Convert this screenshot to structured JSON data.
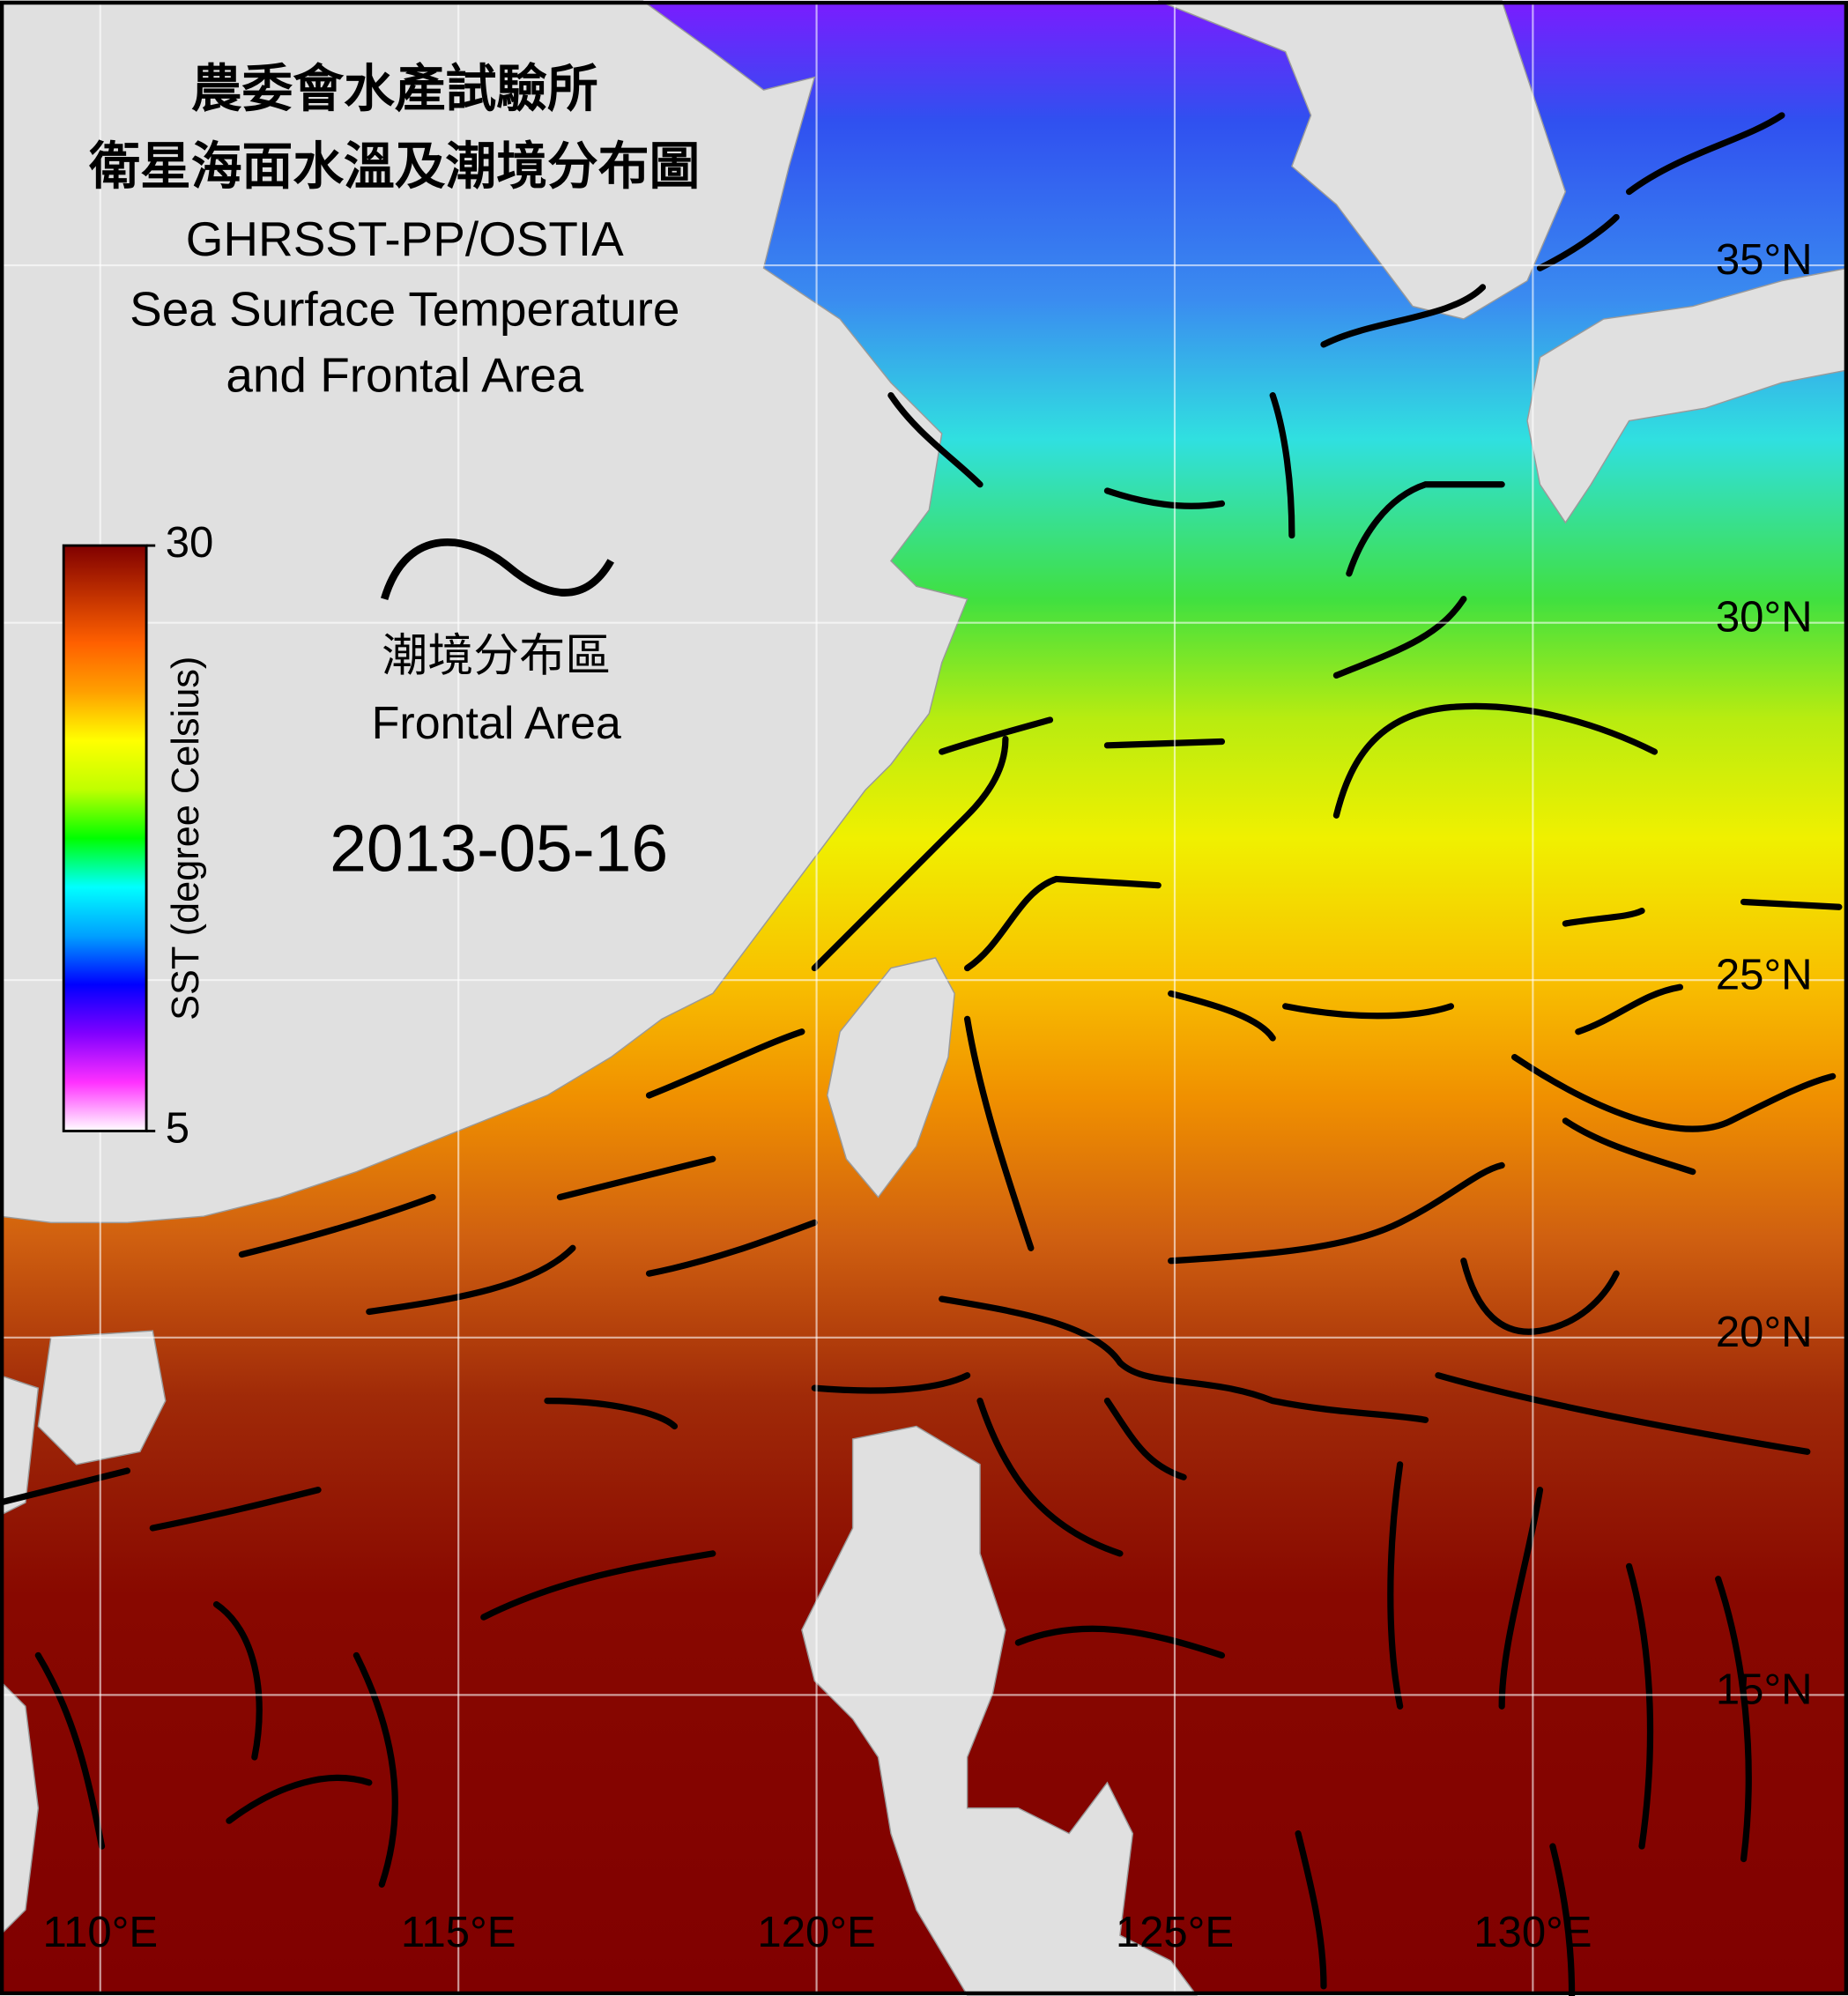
{
  "title": [
    "農委會水產試驗所",
    "衛星海面水溫及潮境分布圖",
    "GHRSST-PP/OSTIA",
    "Sea Surface Temperature",
    "and Frontal Area"
  ],
  "legend": [
    "潮境分布區",
    "Frontal Area"
  ],
  "date": "2013-05-16",
  "colorbar": {
    "label": "SST (degree Celsius)",
    "clim": [
      5,
      30
    ],
    "ticks": [
      30,
      5
    ],
    "colors": [
      "#ffffff",
      "#ff30ff",
      "#8000ff",
      "#0000ff",
      "#00a0ff",
      "#00ffff",
      "#00ff00",
      "#c0ff00",
      "#ffff00",
      "#ffa000",
      "#ff6000",
      "#c03000",
      "#800000"
    ]
  },
  "map": {
    "xlim": [
      108.6,
      134.4
    ],
    "ylim": [
      38.7,
      10.8
    ],
    "lon_ticks": [
      {
        "value": 110,
        "label": "110°E"
      },
      {
        "value": 115,
        "label": "115°E"
      },
      {
        "value": 120,
        "label": "120°E"
      },
      {
        "value": 125,
        "label": "125°E"
      },
      {
        "value": 130,
        "label": "130°E"
      }
    ],
    "lat_ticks": [
      {
        "value": 35,
        "label": "35°N"
      },
      {
        "value": 30,
        "label": "30°N"
      },
      {
        "value": 25,
        "label": "25°N"
      },
      {
        "value": 20,
        "label": "20°N"
      },
      {
        "value": 15,
        "label": "15°N"
      }
    ],
    "grid": true
  }
}
